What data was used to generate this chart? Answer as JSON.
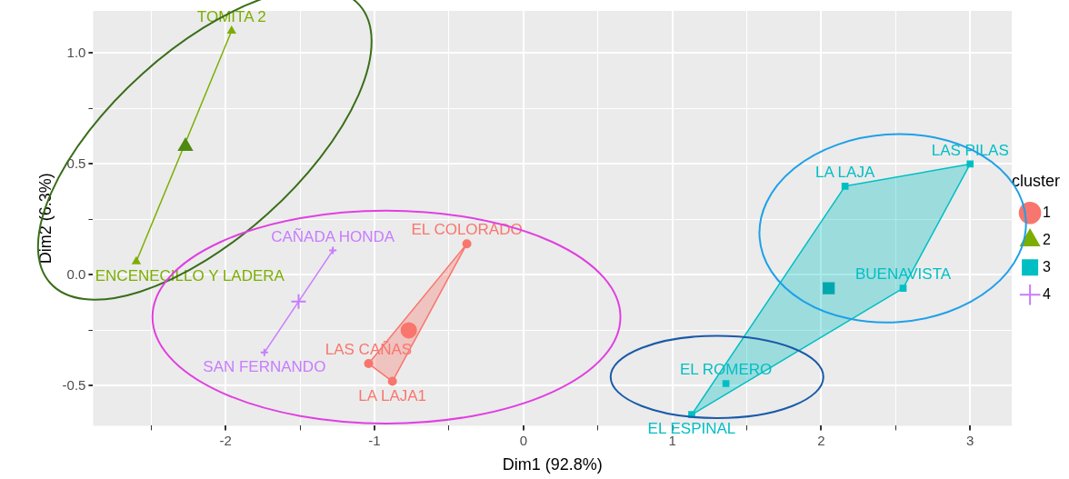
{
  "chart_data": {
    "type": "scatter",
    "xlabel": "Dim1 (92.8%)",
    "ylabel": "Dim2 (6.3%)",
    "legend_title": "cluster",
    "legend": "right",
    "grid": true,
    "xlim": [
      -2.89,
      3.28
    ],
    "ylim": [
      -0.68,
      1.19
    ],
    "xticks": [
      {
        "value": -2.5,
        "label": null
      },
      -2,
      {
        "value": -1.5,
        "label": null
      },
      -1,
      {
        "value": -0.5,
        "label": null
      },
      0,
      {
        "value": 0.5,
        "label": null
      },
      1,
      {
        "value": 1.5,
        "label": null
      },
      2,
      {
        "value": 2.5,
        "label": null
      },
      3
    ],
    "yticks": [
      {
        "value": -0.5,
        "label": "-0.5"
      },
      {
        "value": -0.25,
        "label": null
      },
      {
        "value": 0,
        "label": "0.0"
      },
      {
        "value": 0.25,
        "label": null
      },
      {
        "value": 0.5,
        "label": "0.5"
      },
      {
        "value": 0.75,
        "label": null
      },
      {
        "value": 1,
        "label": "1.0"
      }
    ],
    "series": [
      {
        "type": "area",
        "color": "#f8766d",
        "marker": "none",
        "x": [
          -0.38,
          -1.04,
          -0.88,
          -0.38
        ],
        "values": [
          0.14,
          -0.4,
          -0.48,
          0.14
        ]
      },
      {
        "type": "line",
        "color": "#7cae00",
        "marker": "none",
        "x": [
          -1.96,
          -2.6
        ],
        "values": [
          1.1,
          0.06
        ]
      },
      {
        "type": "area",
        "color": "#00bfc4",
        "marker": "none",
        "x": [
          3.0,
          2.16,
          1.13,
          2.55,
          3.0
        ],
        "values": [
          0.5,
          0.4,
          -0.63,
          -0.06,
          0.5
        ]
      },
      {
        "type": "line",
        "color": "#c77cff",
        "marker": "none",
        "x": [
          -1.28,
          -1.74
        ],
        "values": [
          0.11,
          -0.35
        ]
      },
      {
        "name": "1",
        "color": "#f8766d",
        "marker": "circle",
        "x": [
          -0.38,
          -1.04,
          -0.88
        ],
        "values": [
          0.14,
          -0.4,
          -0.48
        ]
      },
      {
        "name": "2",
        "color": "#7cae00",
        "marker": "triangle",
        "x": [
          -1.96,
          -2.6
        ],
        "values": [
          1.1,
          0.06
        ]
      },
      {
        "name": "3",
        "color": "#00bfc4",
        "marker": "square",
        "x": [
          3.0,
          2.16,
          2.55,
          1.36,
          1.13
        ],
        "values": [
          0.5,
          0.4,
          -0.06,
          -0.49,
          -0.63
        ]
      },
      {
        "name": "4",
        "color": "#c77cff",
        "marker": "cross",
        "x": [
          -1.28,
          -1.74
        ],
        "values": [
          0.11,
          -0.35
        ]
      },
      {
        "color": "#f8766d",
        "marker": "circle",
        "x": [
          -0.77
        ],
        "values": [
          -0.25
        ]
      },
      {
        "color": "#4f8a10",
        "marker": "triangle",
        "x": [
          -2.27
        ],
        "values": [
          0.58
        ]
      },
      {
        "color": "#00a8ad",
        "marker": "square",
        "x": [
          2.05
        ],
        "values": [
          -0.06
        ]
      },
      {
        "color": "#c77cff",
        "marker": "cross",
        "x": [
          -1.51
        ],
        "values": [
          -0.12
        ]
      }
    ],
    "annotations": [
      {
        "text": "EL COLORADO",
        "x": -0.38,
        "y": 0.14
      },
      {
        "text": "LAS CAÑAS",
        "x": -1.04,
        "y": -0.4
      },
      {
        "text": "LA LAJA1",
        "x": -0.88,
        "y": -0.48
      },
      {
        "text": "TOMITA 2",
        "x": -1.96,
        "y": 1.1
      },
      {
        "text": "ENCENECILLO Y LADERA",
        "x": -2.6,
        "y": 0.06
      },
      {
        "text": "LAS PILAS",
        "x": 3.0,
        "y": 0.5
      },
      {
        "text": "LA LAJA",
        "x": 2.16,
        "y": 0.4
      },
      {
        "text": "BUENAVISTA",
        "x": 2.55,
        "y": -0.06
      },
      {
        "text": "EL ROMERO",
        "x": 1.36,
        "y": -0.49
      },
      {
        "text": "EL ESPINAL",
        "x": 1.13,
        "y": -0.63
      },
      {
        "text": "CAÑADA HONDA",
        "x": -1.28,
        "y": 0.11
      },
      {
        "text": "SAN FERNANDO",
        "x": -1.74,
        "y": -0.35
      }
    ]
  }
}
